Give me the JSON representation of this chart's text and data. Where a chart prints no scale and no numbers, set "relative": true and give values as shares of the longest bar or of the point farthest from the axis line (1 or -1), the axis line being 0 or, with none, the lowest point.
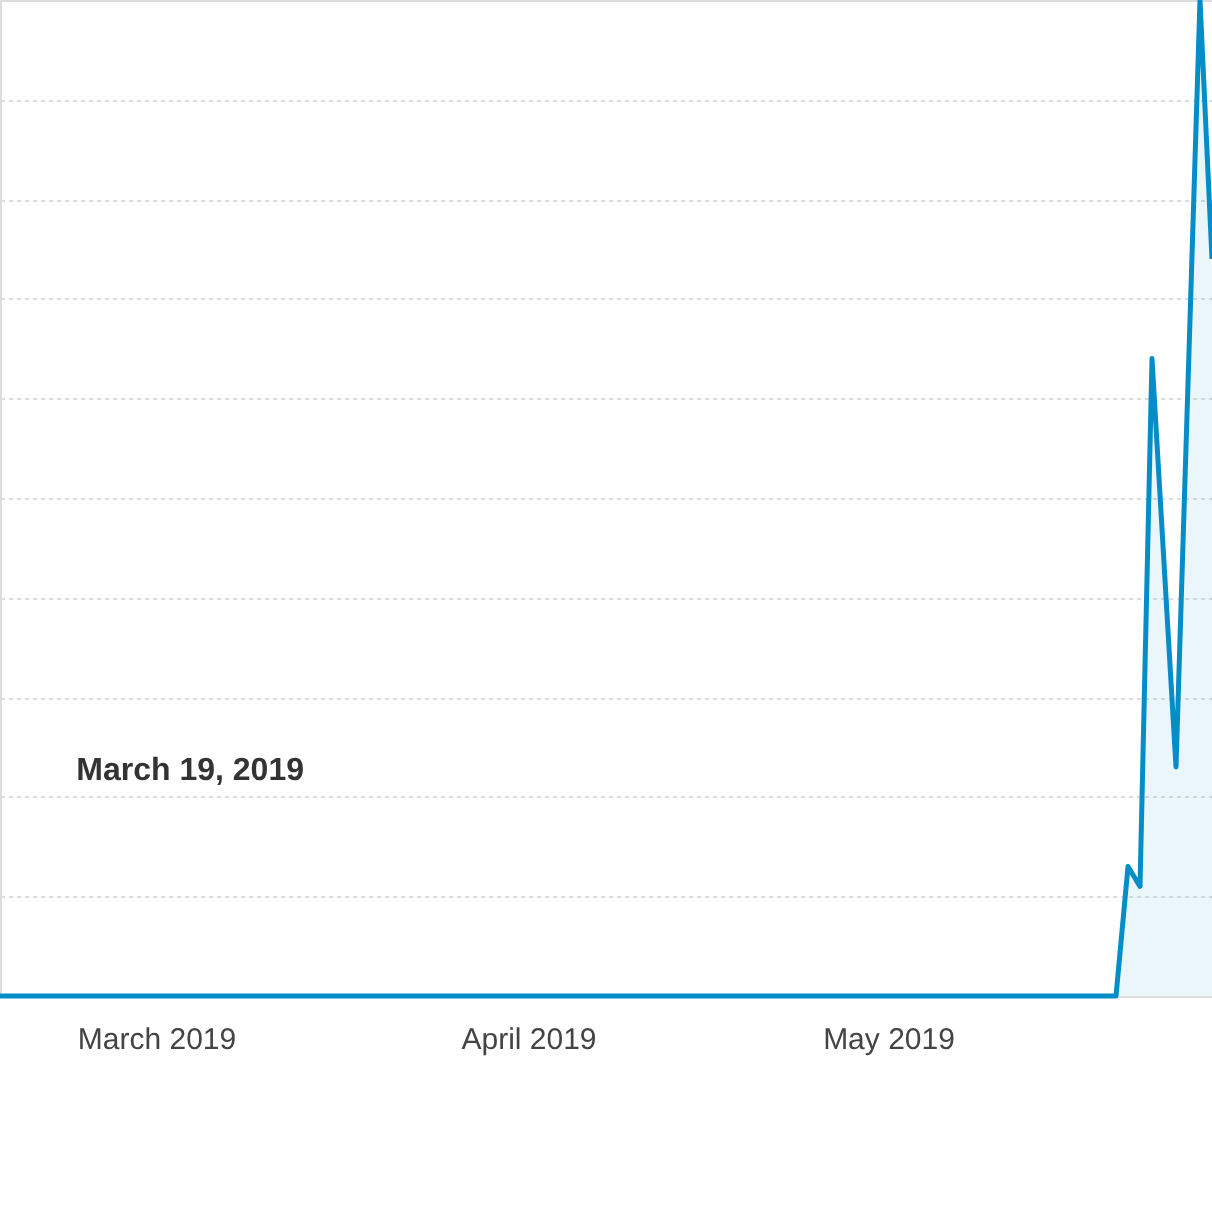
{
  "chart_data": {
    "type": "area",
    "relative": true,
    "x": [
      "2019-02-16",
      "2019-03-19",
      "2019-05-20",
      "2019-05-21",
      "2019-05-22",
      "2019-05-23",
      "2019-05-25",
      "2019-05-27",
      "2019-05-28"
    ],
    "series": [
      {
        "color": "#058dc7",
        "values": [
          0,
          0,
          0,
          0.13,
          0.11,
          0.64,
          0.23,
          1.0,
          0.74
        ]
      }
    ],
    "xlim": [
      "2019-02-16",
      "2019-05-28"
    ],
    "xticks": [
      {
        "value": "2019-03-01",
        "label": "March 2019"
      },
      {
        "value": "2019-04-01",
        "label": "April 2019"
      },
      {
        "value": "2019-05-01",
        "label": "May 2019"
      }
    ],
    "annotations": [
      "March 19, 2019"
    ],
    "grid": "y"
  }
}
